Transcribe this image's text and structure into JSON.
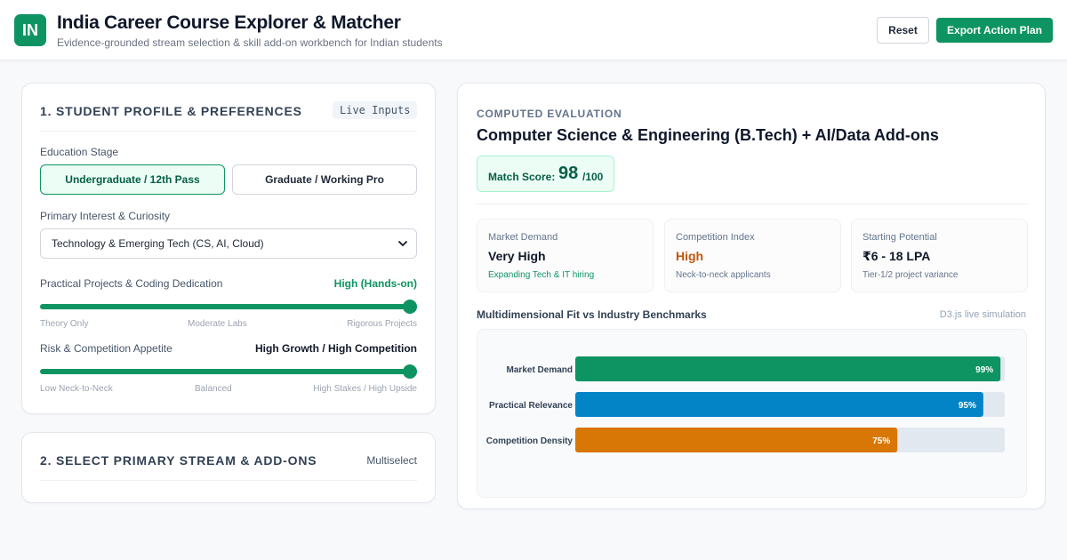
{
  "header": {
    "logo": "IN",
    "title": "India Career Course Explorer & Matcher",
    "subtitle": "Evidence-grounded stream selection & skill add-on workbench for Indian students",
    "reset_label": "Reset",
    "export_label": "Export Action Plan"
  },
  "profile": {
    "title": "1. Student Profile & Preferences",
    "tag": "Live Inputs",
    "education_label": "Education Stage",
    "education_options": [
      "Undergraduate / 12th Pass",
      "Graduate / Working Pro"
    ],
    "education_selected": "Undergraduate / 12th Pass",
    "interest_label": "Primary Interest & Curiosity",
    "interest_value": "Technology & Emerging Tech (CS, AI, Cloud)",
    "projects_label": "Practical Projects & Coding Dedication",
    "projects_value": "High (Hands-on)",
    "projects_level": 1.0,
    "projects_ticks": [
      "Theory Only",
      "Moderate Labs",
      "Rigorous Projects"
    ],
    "risk_label": "Risk & Competition Appetite",
    "risk_value": "High Growth / High Competition",
    "risk_level": 1.0,
    "risk_ticks": [
      "Low Neck-to-Neck",
      "Balanced",
      "High Stakes / High Upside"
    ]
  },
  "streams": {
    "title": "2. Select Primary Stream & Add-ons",
    "tag": "Multiselect"
  },
  "evaluation": {
    "eyebrow": "Computed Evaluation",
    "title": "Computer Science & Engineering (B.Tech) + AI/Data Add-ons",
    "score_label": "Match Score:",
    "score": "98",
    "score_max": "/100",
    "metrics": [
      {
        "label": "Market Demand",
        "value": "Very High",
        "note": "Expanding Tech & IT hiring",
        "value_color": "#111827",
        "note_color": "#0e9462"
      },
      {
        "label": "Competition Index",
        "value": "High",
        "note": "Neck-to-neck applicants",
        "value_color": "#c2570c",
        "note_color": "#64748b"
      },
      {
        "label": "Starting Potential",
        "value": "₹6 - 18 LPA",
        "note": "Tier-1/2 project variance",
        "value_color": "#111827",
        "note_color": "#64748b"
      }
    ],
    "chart_title": "Multidimensional Fit vs Industry Benchmarks",
    "chart_note": "D3.js live simulation"
  },
  "chart_data": {
    "type": "bar",
    "orientation": "horizontal",
    "categories": [
      "Market Demand",
      "Practical Relevance",
      "Competition Density"
    ],
    "values": [
      99,
      95,
      75
    ],
    "value_labels": [
      "99%",
      "95%",
      "75%"
    ],
    "colors": [
      "#0e9462",
      "#0284c7",
      "#d97706"
    ],
    "xlim": [
      0,
      100
    ],
    "grid": false
  }
}
